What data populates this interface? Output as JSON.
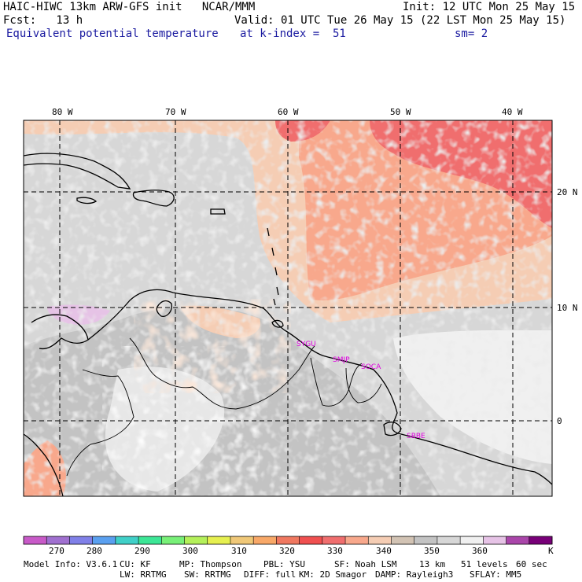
{
  "header": {
    "model_title": "HAIC-HIWC 13km ARW-GFS init   NCAR/MMM",
    "init_text": "Init: 12 UTC Mon 25 May 15",
    "fcst_text": "Fcst:   13 h",
    "valid_text": "Valid: 01 UTC Tue 26 May 15 (22 LST Mon 25 May 15)",
    "field_name": "Equivalent potential temperature",
    "level_text": "at k-index =  51",
    "smooth_text": "sm= 2"
  },
  "map": {
    "lon_labels": [
      "80 W",
      "70 W",
      "60 W",
      "50 W",
      "40 W"
    ],
    "lat_labels": [
      "20 N",
      "10 N",
      "0"
    ],
    "stations": [
      "SYGU",
      "SMJP",
      "SOCA",
      "SBBE"
    ],
    "coast_color": "#000000",
    "station_color": "#e000e0"
  },
  "colorbar": {
    "tick_labels": [
      "270",
      "280",
      "290",
      "300",
      "310",
      "320",
      "330",
      "340",
      "350",
      "360"
    ],
    "unit": "K",
    "colors": [
      "#c85ac8",
      "#a070d0",
      "#8080e8",
      "#5aa0f0",
      "#40d0c8",
      "#3ce696",
      "#78f078",
      "#b4f05a",
      "#e6f050",
      "#f0c878",
      "#f8a868",
      "#f07860",
      "#f05050",
      "#f06e6e",
      "#f8a88c",
      "#f5cdb4",
      "#d2c3b4",
      "#c3c3c3",
      "#d7d7d7",
      "#f0f0f0",
      "#e6c3e6",
      "#aa46aa",
      "#780078"
    ]
  },
  "footer": {
    "line1": [
      "Model Info: V3.6.1",
      "CU: KF",
      "MP: Thompson",
      "PBL: YSU",
      "SF: Noah LSM",
      "13 km",
      "51 levels",
      "60 sec"
    ],
    "line2": [
      "LW: RRTMG",
      "SW: RRTMG",
      "DIFF: full",
      "KM: 2D Smagor",
      "DAMP: Rayleigh3",
      "SFLAY: MM5"
    ]
  }
}
